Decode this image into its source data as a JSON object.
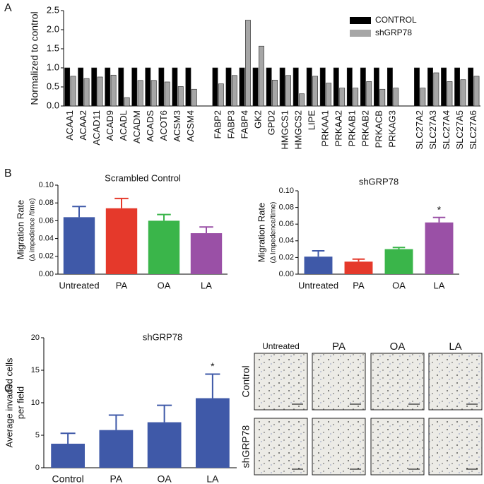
{
  "panel_labels": [
    "A",
    "B",
    "C"
  ],
  "chart_data": [
    {
      "type": "bar",
      "ylabel": "Normalized to control",
      "categories": [
        "ACAA1",
        "ACAA2",
        "ACAD11",
        "ACAD9",
        "ACADL",
        "ACADM",
        "ACADS",
        "ACOT6",
        "ACSM3",
        "ACSM4",
        null,
        "FABP2",
        "FABP3",
        "FABP4",
        "GK2",
        "GPD2",
        "HMGCS1",
        "HMGCS2",
        "LIPE",
        "PRKAA1",
        "PRKAA2",
        "PRKAB1",
        "PRKAB2",
        "PRKACB",
        "PRKAG3",
        null,
        "SLC27A2",
        "SLC27A3",
        "SLC27A4",
        "SLC27A5",
        "SLC27A6"
      ],
      "series": [
        {
          "name": "CONTROL",
          "color": "#000000",
          "values": [
            1,
            1,
            1,
            1,
            1,
            1,
            1,
            1,
            1,
            1,
            null,
            1,
            1,
            1,
            1,
            1,
            1,
            1,
            1,
            1,
            1,
            1,
            1,
            1,
            1,
            null,
            1,
            1,
            1,
            1,
            1
          ]
        },
        {
          "name": "shGRP78",
          "color": "#a6a6a6",
          "values": [
            0.78,
            0.72,
            0.76,
            0.81,
            0.22,
            0.67,
            0.67,
            0.63,
            0.51,
            0.44,
            null,
            0.58,
            0.8,
            2.25,
            1.57,
            0.68,
            0.8,
            0.32,
            0.78,
            0.6,
            0.47,
            0.47,
            0.64,
            0.44,
            0.47,
            null,
            0.47,
            0.87,
            0.64,
            0.69,
            0.78
          ]
        }
      ],
      "ylim": [
        0,
        2.5
      ],
      "yticks": [
        {
          "value": 0,
          "label": "0.0"
        },
        0.5,
        {
          "value": 1,
          "label": "1.0"
        },
        1.5,
        {
          "value": 2,
          "label": "2.0"
        },
        2.5
      ],
      "legend": "upper right"
    },
    {
      "type": "bar",
      "title": "Scrambled Control",
      "ylabel": "Migration Rate",
      "ylabel_sub": "(Δ impedence /time)",
      "categories": [
        "Untreated",
        "PA",
        "OA",
        "LA"
      ],
      "values": [
        0.064,
        0.074,
        0.06,
        0.046
      ],
      "errors": [
        0.012,
        0.011,
        0.007,
        0.007
      ],
      "colors": [
        "#3f59a8",
        "#e5392b",
        "#3ab54a",
        "#9a50a6"
      ],
      "ylim": [
        0,
        0.1
      ],
      "yticks": [
        {
          "value": 0,
          "label": "0.00"
        },
        {
          "value": 0.02,
          "label": "0.02"
        },
        {
          "value": 0.04,
          "label": "0.04"
        },
        {
          "value": 0.06,
          "label": "0.06"
        },
        {
          "value": 0.08,
          "label": "0.08"
        },
        {
          "value": 0.1,
          "label": "0.10"
        }
      ]
    },
    {
      "type": "bar",
      "title": "shGRP78",
      "ylabel": "Migration Rate",
      "ylabel_sub": "(Δ Impedence/time)",
      "categories": [
        "Untreated",
        "PA",
        "OA",
        "LA"
      ],
      "values": [
        0.021,
        0.015,
        0.03,
        0.062
      ],
      "errors": [
        0.007,
        0.003,
        0.002,
        0.006
      ],
      "colors": [
        "#3f59a8",
        "#e5392b",
        "#3ab54a",
        "#9a50a6"
      ],
      "ylim": [
        0,
        0.1
      ],
      "yticks": [
        {
          "value": 0,
          "label": "0.00"
        },
        {
          "value": 0.02,
          "label": "0.02"
        },
        {
          "value": 0.04,
          "label": "0.04"
        },
        {
          "value": 0.06,
          "label": "0.06"
        },
        {
          "value": 0.08,
          "label": "0.08"
        },
        {
          "value": 0.1,
          "label": "0.10"
        }
      ],
      "annotations": [
        {
          "text": "*",
          "category": "LA"
        }
      ]
    },
    {
      "type": "bar",
      "title": "shGRP78",
      "ylabel": "Average invaded cells",
      "ylabel_sub": "per field",
      "categories": [
        "Control",
        "PA",
        "OA",
        "LA"
      ],
      "values": [
        3.7,
        5.8,
        7.0,
        10.7
      ],
      "errors": [
        1.6,
        2.3,
        2.6,
        3.7
      ],
      "color": "#3f59a8",
      "ylim": [
        0,
        20
      ],
      "yticks": [
        0,
        5,
        10,
        15,
        20
      ],
      "annotations": [
        {
          "text": "*",
          "category": "LA"
        }
      ]
    }
  ],
  "micrographs": {
    "columns": [
      "Untreated",
      "PA",
      "OA",
      "LA"
    ],
    "rows": [
      "Control",
      "shGRP78"
    ]
  }
}
